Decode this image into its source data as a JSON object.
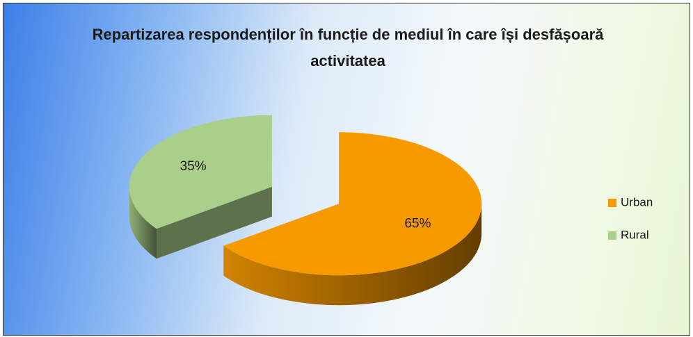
{
  "chart_data": {
    "type": "pie",
    "title": "Repartizarea respondenților în funcție de mediul în care își desfășoară activitatea",
    "categories": [
      "Urban",
      "Rural"
    ],
    "values": [
      65,
      35
    ],
    "value_labels": [
      "65%",
      "35%"
    ],
    "colors": [
      "#f79a00",
      "#a9cf8a"
    ],
    "legend": "right"
  }
}
